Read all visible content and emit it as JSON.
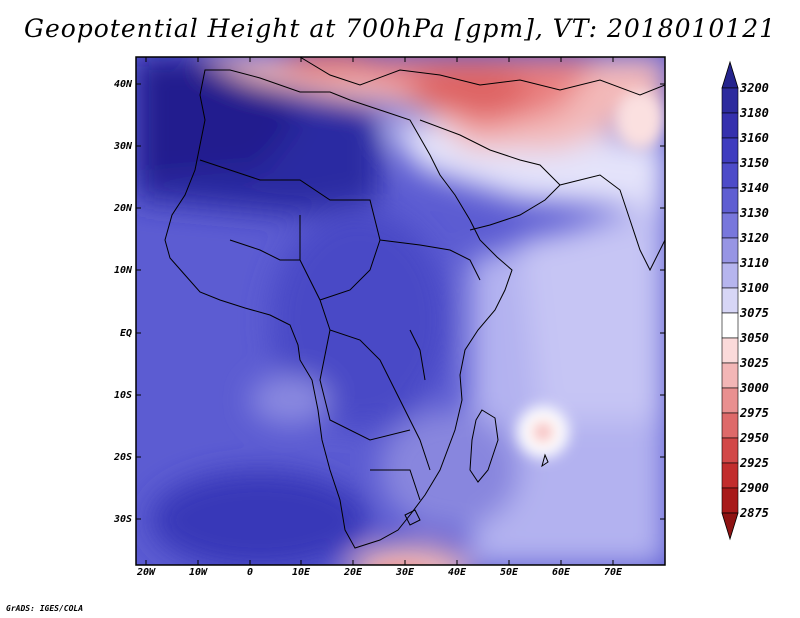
{
  "title": "Geopotential Height at 700hPa [gpm], VT: 2018010121",
  "footer": "GrADS: IGES/COLA",
  "lat_ticks": [
    "40N",
    "30N",
    "20N",
    "10N",
    "EQ",
    "10S",
    "20S",
    "30S"
  ],
  "lon_ticks": [
    "20W",
    "10W",
    "0",
    "10E",
    "20E",
    "30E",
    "40E",
    "50E",
    "60E",
    "70E"
  ],
  "colorbar": {
    "levels": [
      "3200",
      "3180",
      "3160",
      "3150",
      "3140",
      "3130",
      "3120",
      "3110",
      "3100",
      "3075",
      "3050",
      "3025",
      "3000",
      "2975",
      "2950",
      "2925",
      "2900",
      "2875"
    ],
    "colors": {
      "top_arrow": "#25248d",
      "bands": [
        "#2d2b9e",
        "#3530ae",
        "#3f3cbf",
        "#4d4bc9",
        "#5f5ed2",
        "#7877dc",
        "#9795e4",
        "#b6b5ee",
        "#d7d6f6",
        "#ffffff",
        "#fbdada",
        "#f3b6b6",
        "#e99090",
        "#de6a6a",
        "#d24848",
        "#c22d2d",
        "#a81a1a"
      ],
      "bottom_arrow": "#8e1313"
    }
  },
  "colors": {
    "sahara_high": "#2b2ba3",
    "tropics": "#5c5cd2",
    "south_atlantic": "#4747c4",
    "indian_ocean": "#b0aff0",
    "mediterranean_low": "#e05a5a",
    "coastline": "#000000"
  }
}
